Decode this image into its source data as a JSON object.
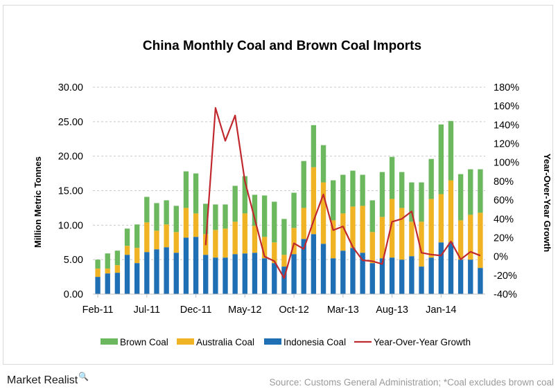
{
  "chart_data": {
    "type": "bar",
    "title": "China Monthly Coal and Brown Coal Imports",
    "ylabel": "Million Metric Tonnes",
    "y2label": "Year-Over-Year Growth",
    "ylim": [
      0,
      30
    ],
    "y2lim": [
      -40,
      180
    ],
    "yticks": [
      "0.00",
      "5.00",
      "10.00",
      "15.00",
      "20.00",
      "25.00",
      "30.00"
    ],
    "y2ticks": [
      "-40%",
      "-20%",
      "0%",
      "20%",
      "40%",
      "60%",
      "80%",
      "100%",
      "120%",
      "140%",
      "160%",
      "180%"
    ],
    "grid": true,
    "legend_position": "bottom",
    "categories": [
      "Feb-11",
      "Mar-11",
      "Apr-11",
      "May-11",
      "Jun-11",
      "Jul-11",
      "Aug-11",
      "Sep-11",
      "Oct-11",
      "Nov-11",
      "Dec-11",
      "Jan-12",
      "Feb-12",
      "Mar-12",
      "Apr-12",
      "May-12",
      "Jun-12",
      "Jul-12",
      "Aug-12",
      "Sep-12",
      "Oct-12",
      "Nov-12",
      "Dec-12",
      "Jan-13",
      "Feb-13",
      "Mar-13",
      "Apr-13",
      "May-13",
      "Jun-13",
      "Jul-13",
      "Aug-13",
      "Sep-13",
      "Oct-13",
      "Nov-13",
      "Dec-13",
      "Jan-14",
      "Feb-14",
      "Mar-14",
      "Apr-14",
      "May-14"
    ],
    "xtick_labels": [
      {
        "index": 0,
        "label": "Feb-11"
      },
      {
        "index": 5,
        "label": "Jul-11"
      },
      {
        "index": 10,
        "label": "Dec-11"
      },
      {
        "index": 15,
        "label": "May-12"
      },
      {
        "index": 20,
        "label": "Oct-12"
      },
      {
        "index": 25,
        "label": "Mar-13"
      },
      {
        "index": 30,
        "label": "Aug-13"
      },
      {
        "index": 35,
        "label": "Jan-14"
      }
    ],
    "series": [
      {
        "name": "Indonesia Coal",
        "kind": "bar",
        "color": "#1f6fb5",
        "values": [
          2.5,
          3.0,
          3.1,
          5.7,
          4.5,
          6.1,
          6.5,
          6.8,
          6.0,
          8.2,
          8.3,
          5.7,
          5.3,
          5.3,
          5.8,
          5.9,
          6.0,
          5.2,
          4.5,
          4.0,
          5.8,
          8.0,
          8.7,
          7.3,
          5.2,
          6.3,
          6.7,
          6.0,
          4.5,
          5.2,
          5.3,
          5.0,
          5.5,
          4.0,
          5.3,
          7.5,
          7.5,
          5.0,
          5.0,
          3.8
        ]
      },
      {
        "name": "Australia Coal",
        "kind": "bar",
        "color": "#f0b323",
        "values": [
          1.2,
          0.7,
          1.1,
          1.3,
          2.2,
          4.3,
          2.7,
          3.3,
          3.0,
          4.3,
          3.4,
          3.0,
          4.0,
          4.2,
          4.7,
          5.8,
          3.9,
          3.1,
          3.0,
          1.7,
          3.8,
          4.5,
          9.7,
          8.9,
          5.5,
          5.4,
          6.0,
          6.8,
          4.5,
          6.0,
          8.5,
          7.5,
          5.0,
          6.5,
          8.5,
          7.0,
          9.0,
          5.7,
          6.5,
          8.0
        ]
      },
      {
        "name": "Brown Coal",
        "kind": "bar",
        "color": "#6cb85e",
        "values": [
          1.3,
          2.2,
          2.1,
          2.5,
          3.4,
          3.7,
          4.0,
          3.5,
          3.8,
          5.3,
          5.8,
          4.4,
          3.7,
          3.5,
          5.2,
          5.4,
          4.5,
          6.0,
          5.9,
          5.2,
          5.1,
          6.8,
          6.1,
          5.4,
          5.8,
          5.6,
          5.2,
          4.5,
          4.6,
          6.5,
          6.1,
          5.2,
          5.7,
          5.7,
          5.8,
          10.1,
          8.6,
          6.7,
          6.6,
          6.3
        ]
      },
      {
        "name": "Year-Over-Year Growth",
        "kind": "line",
        "axis": "y2",
        "color": "#c0282d",
        "values": [
          null,
          null,
          null,
          null,
          null,
          null,
          null,
          null,
          null,
          null,
          null,
          12,
          158,
          123,
          150,
          80,
          40,
          0,
          -5,
          -23,
          14,
          8,
          38,
          66,
          28,
          32,
          10,
          -4,
          -5,
          -8,
          37,
          40,
          48,
          4,
          2,
          1,
          16,
          -3,
          5,
          1
        ]
      }
    ]
  },
  "footer": {
    "brand": "Market Realist",
    "brand_mark": "🔍",
    "source": "Source: Customs General Administration; *Coal excludes brown coal"
  }
}
